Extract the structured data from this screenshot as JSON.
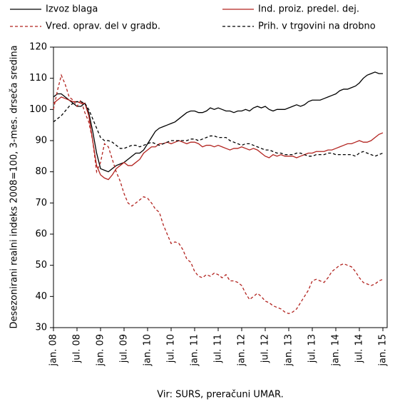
{
  "chart_data": {
    "type": "line",
    "y_label": "Desezonirani realni indeks 2008=100, 3-mes. drseča sredina",
    "source": "Vir: SURS, preračuni UMAR.",
    "categories": [
      "jan. 08",
      null,
      null,
      null,
      null,
      null,
      "jul. 08",
      null,
      null,
      null,
      null,
      null,
      "jan. 09",
      null,
      null,
      null,
      null,
      null,
      "jul. 09",
      null,
      null,
      null,
      null,
      null,
      "jan. 10",
      null,
      null,
      null,
      null,
      null,
      "jul. 10",
      null,
      null,
      null,
      null,
      null,
      "jan. 11",
      null,
      null,
      null,
      null,
      null,
      "jul. 11",
      null,
      null,
      null,
      null,
      null,
      "jan. 12",
      null,
      null,
      null,
      null,
      null,
      "jul. 12",
      null,
      null,
      null,
      null,
      null,
      "jan. 13",
      null,
      null,
      null,
      null,
      null,
      "jul. 13",
      null,
      null,
      null,
      null,
      null,
      "jan. 14",
      null,
      null,
      null,
      null,
      null,
      "jul. 14",
      null,
      null,
      null,
      null,
      null,
      "jan. 15"
    ],
    "ylim": [
      30,
      120
    ],
    "yticks": [
      30,
      40,
      50,
      60,
      70,
      80,
      90,
      100,
      110,
      120
    ],
    "legend": "top",
    "series": [
      {
        "name": "Izvoz blaga",
        "color": "#000000",
        "dash": false,
        "values": [
          104,
          105,
          105,
          104,
          103,
          102,
          101,
          101,
          102,
          99,
          93,
          86,
          81,
          80.5,
          80,
          81,
          82,
          82.5,
          83,
          84,
          85,
          86,
          86,
          87,
          89,
          91,
          93,
          94,
          94.5,
          95,
          95.5,
          96,
          97,
          98,
          99,
          99.5,
          99.5,
          99,
          99,
          99.5,
          100.5,
          100,
          100.5,
          100,
          99.5,
          99.5,
          99,
          99.5,
          99.5,
          100,
          99.5,
          100.5,
          101,
          100.5,
          101,
          100,
          99.5,
          100,
          100,
          100,
          100.5,
          101,
          101.5,
          101,
          101.5,
          102.5,
          103,
          103,
          103,
          103.5,
          104,
          104.5,
          105,
          106,
          106.5,
          106.5,
          107,
          107.5,
          108.5,
          110,
          111,
          111.5,
          112,
          111.5,
          111.5
        ]
      },
      {
        "name": "Ind. proiz. predel. dej.",
        "color": "#b2231f",
        "dash": false,
        "values": [
          102,
          103,
          104,
          103.5,
          103,
          102.5,
          102.5,
          102,
          102,
          98,
          90,
          82,
          79,
          78,
          77.5,
          79,
          81,
          82,
          83,
          82,
          82,
          83,
          84,
          86,
          87,
          88,
          88,
          89,
          89,
          89.5,
          89,
          89.5,
          90,
          89.5,
          89,
          89.5,
          89.5,
          89,
          88,
          88.5,
          88.5,
          88,
          88.5,
          88,
          87.5,
          87,
          87.5,
          87.5,
          88,
          87.5,
          87,
          87.5,
          87,
          86,
          85,
          84.5,
          85.5,
          85,
          85.5,
          85,
          85,
          85,
          84.5,
          85,
          85.5,
          86,
          86,
          86.5,
          86.5,
          86.5,
          87,
          87,
          87.5,
          88,
          88.5,
          89,
          89,
          89.5,
          90,
          89.5,
          89.5,
          90,
          91,
          92,
          92.5
        ]
      },
      {
        "name": "Vred. oprav. del v gradb.",
        "color": "#b2231f",
        "dash": true,
        "values": [
          100,
          106,
          111,
          108,
          104,
          103,
          101,
          103,
          99,
          96,
          90,
          80,
          83,
          89,
          88,
          84,
          80,
          77,
          73,
          70,
          69,
          70,
          71,
          72,
          71.5,
          70,
          68,
          67,
          63,
          60,
          57,
          57.5,
          57,
          55,
          52,
          51,
          48,
          46.5,
          46,
          47,
          46.5,
          47.5,
          47,
          46,
          47,
          45,
          45,
          44.5,
          43.5,
          41,
          39,
          40,
          41,
          40,
          38.5,
          38,
          37,
          36.5,
          36,
          35,
          34.5,
          35,
          36,
          38,
          40,
          42,
          45,
          45.5,
          45,
          44.5,
          46,
          48,
          49,
          50,
          50.5,
          50,
          49.5,
          48,
          46,
          44.5,
          44,
          43.5,
          44,
          45,
          45.5
        ]
      },
      {
        "name": "Prih. v trgovini na drobno",
        "color": "#000000",
        "dash": true,
        "values": [
          96,
          97,
          98,
          99.5,
          101,
          102,
          102.5,
          102.5,
          102,
          100,
          97,
          94,
          91,
          90,
          90,
          89.5,
          88.5,
          87.5,
          87.5,
          88,
          88.5,
          88.5,
          88,
          88.5,
          89,
          89.5,
          89,
          88.5,
          89,
          89.5,
          90,
          90,
          90,
          90,
          90,
          90.5,
          90.5,
          90,
          90.5,
          91,
          91.5,
          91.5,
          91,
          91,
          91,
          90,
          89.5,
          89,
          88.5,
          89,
          89,
          88.5,
          88,
          87.5,
          87,
          87,
          86.5,
          86,
          86,
          85.5,
          85.5,
          85.5,
          86,
          86,
          85.5,
          85,
          85,
          85.5,
          85.5,
          85.5,
          86,
          86,
          85.5,
          85.5,
          85.5,
          85.5,
          85.5,
          85,
          86,
          86.5,
          86,
          85.5,
          85,
          85.5,
          86
        ]
      }
    ]
  }
}
